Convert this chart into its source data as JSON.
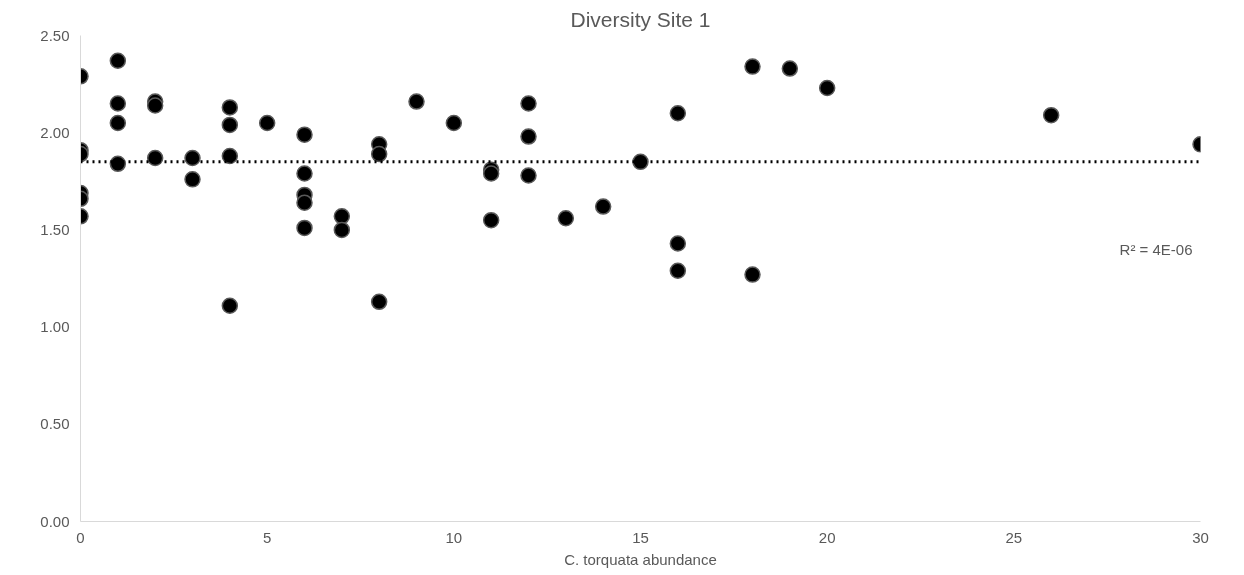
{
  "chart_data": {
    "type": "scatter",
    "title": "Diversity Site 1",
    "xlabel": "C. torquata abundance",
    "grid": false,
    "xlim": [
      0,
      30
    ],
    "xticks": [
      0,
      5,
      10,
      15,
      20,
      25,
      30
    ],
    "ylim": [
      0,
      2.5
    ],
    "yticks": [
      {
        "value": 0,
        "label": "0.00"
      },
      {
        "value": 0.5,
        "label": "0.50"
      },
      {
        "value": 1,
        "label": "1.00"
      },
      {
        "value": 1.5,
        "label": "1.50"
      },
      {
        "value": 2,
        "label": "2.00"
      },
      {
        "value": 2.5,
        "label": "2.50"
      }
    ],
    "annotations": [
      "R² = 4E-06"
    ],
    "series": [
      {
        "marker": "circle",
        "color": "#000000",
        "x": [
          0,
          0,
          0,
          0,
          0,
          0,
          1,
          1,
          1,
          1,
          2,
          2,
          2,
          3,
          3,
          4,
          4,
          4,
          4,
          5,
          6,
          6,
          6,
          6,
          6,
          7,
          7,
          8,
          8,
          8,
          9,
          10,
          11,
          11,
          11,
          12,
          12,
          12,
          13,
          14,
          15,
          16,
          16,
          16,
          18,
          18,
          19,
          20,
          26,
          30
        ],
        "values": [
          2.29,
          1.91,
          1.89,
          1.69,
          1.66,
          1.57,
          2.37,
          2.15,
          2.05,
          1.84,
          2.16,
          2.14,
          1.87,
          1.87,
          1.76,
          2.13,
          2.04,
          1.88,
          1.11,
          2.05,
          1.99,
          1.79,
          1.68,
          1.64,
          1.51,
          1.57,
          1.5,
          1.94,
          1.89,
          1.13,
          2.16,
          2.05,
          1.81,
          1.79,
          1.55,
          2.15,
          1.98,
          1.78,
          1.56,
          1.62,
          1.85,
          2.1,
          1.43,
          1.29,
          2.34,
          1.27,
          2.33,
          2.23,
          2.09,
          1.94
        ]
      },
      {
        "type": "line",
        "color": "#000000",
        "line_style": "dotted",
        "x": [
          0,
          30
        ],
        "values": [
          1.85,
          1.85
        ]
      }
    ]
  }
}
